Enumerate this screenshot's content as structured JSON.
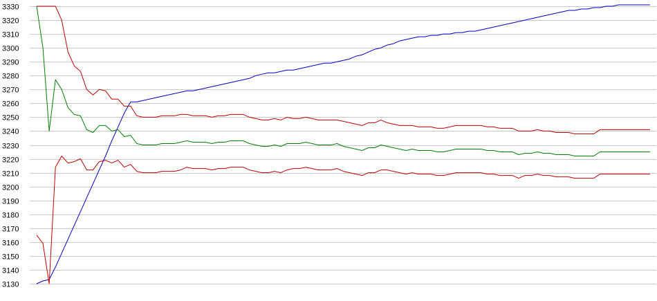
{
  "chart_data": {
    "type": "line",
    "title": "",
    "xlabel": "",
    "ylabel": "",
    "ylim": [
      3130,
      3330
    ],
    "yticks": [
      3130,
      3140,
      3150,
      3160,
      3170,
      3180,
      3190,
      3200,
      3210,
      3220,
      3230,
      3240,
      3250,
      3260,
      3270,
      3280,
      3290,
      3300,
      3310,
      3320,
      3330
    ],
    "grid": true,
    "x": [
      0,
      1,
      2,
      3,
      4,
      5,
      6,
      7,
      8,
      9,
      10,
      11,
      12,
      13,
      14,
      15,
      16,
      17,
      18,
      19,
      20,
      21,
      22,
      23,
      24,
      25,
      26,
      27,
      28,
      29,
      30,
      31,
      32,
      33,
      34,
      35,
      36,
      37,
      38,
      39,
      40,
      41,
      42,
      43,
      44,
      45,
      46,
      47,
      48,
      49,
      50,
      51,
      52,
      53,
      54,
      55,
      56,
      57,
      58,
      59,
      60,
      61,
      62,
      63,
      64,
      65,
      66,
      67,
      68,
      69,
      70,
      71,
      72,
      73,
      74,
      75,
      76,
      77,
      78,
      79,
      80,
      81,
      82,
      83,
      84,
      85,
      86,
      87,
      88,
      89,
      90,
      91,
      92,
      93,
      94,
      95,
      96,
      97,
      98
    ],
    "series": [
      {
        "color": "#0000c0",
        "values": [
          3130,
          3132,
          3133,
          3142,
          3152,
          3162,
          3172,
          3182,
          3192,
          3202,
          3212,
          3222,
          3233,
          3243,
          3253,
          3261,
          3261,
          3262,
          3263,
          3264,
          3265,
          3266,
          3267,
          3268,
          3269,
          3269,
          3270,
          3271,
          3272,
          3273,
          3274,
          3275,
          3276,
          3277,
          3278,
          3280,
          3281,
          3282,
          3282,
          3283,
          3284,
          3284,
          3285,
          3286,
          3287,
          3288,
          3289,
          3289,
          3290,
          3291,
          3292,
          3294,
          3295,
          3297,
          3299,
          3300,
          3302,
          3303,
          3305,
          3306,
          3307,
          3308,
          3308,
          3309,
          3309,
          3310,
          3310,
          3311,
          3311,
          3312,
          3312,
          3313,
          3314,
          3315,
          3316,
          3317,
          3318,
          3319,
          3320,
          3321,
          3322,
          3323,
          3324,
          3325,
          3326,
          3327,
          3327,
          3328,
          3328,
          3329,
          3329,
          3330,
          3330,
          3331,
          3331,
          3331,
          3331,
          3331,
          3331
        ]
      },
      {
        "color": "#c00000",
        "values": [
          3330,
          3330,
          3330,
          3330,
          3320,
          3297,
          3287,
          3283,
          3270,
          3266,
          3270,
          3269,
          3263,
          3263,
          3258,
          3258,
          3251,
          3250,
          3250,
          3250,
          3251,
          3251,
          3251,
          3252,
          3252,
          3251,
          3251,
          3251,
          3250,
          3251,
          3251,
          3252,
          3252,
          3252,
          3250,
          3249,
          3248,
          3248,
          3249,
          3248,
          3250,
          3249,
          3249,
          3250,
          3249,
          3248,
          3248,
          3248,
          3248,
          3247,
          3246,
          3245,
          3244,
          3246,
          3246,
          3248,
          3246,
          3245,
          3244,
          3244,
          3244,
          3243,
          3243,
          3243,
          3242,
          3242,
          3243,
          3244,
          3244,
          3244,
          3244,
          3244,
          3243,
          3243,
          3242,
          3242,
          3242,
          3240,
          3240,
          3240,
          3241,
          3240,
          3240,
          3239,
          3239,
          3239,
          3238,
          3238,
          3238,
          3238,
          3241,
          3241,
          3241,
          3241,
          3241,
          3241,
          3241,
          3241,
          3241
        ]
      },
      {
        "color": "#008000",
        "values": [
          3330,
          3300,
          3240,
          3277,
          3270,
          3257,
          3252,
          3251,
          3241,
          3239,
          3244,
          3244,
          3240,
          3241,
          3236,
          3237,
          3231,
          3230,
          3230,
          3230,
          3231,
          3231,
          3231,
          3232,
          3233,
          3232,
          3232,
          3232,
          3231,
          3232,
          3232,
          3233,
          3233,
          3233,
          3231,
          3230,
          3229,
          3229,
          3230,
          3229,
          3231,
          3231,
          3231,
          3232,
          3231,
          3230,
          3230,
          3230,
          3231,
          3229,
          3228,
          3227,
          3226,
          3228,
          3228,
          3230,
          3229,
          3228,
          3227,
          3226,
          3227,
          3226,
          3226,
          3226,
          3225,
          3225,
          3226,
          3227,
          3227,
          3227,
          3227,
          3227,
          3226,
          3226,
          3225,
          3225,
          3225,
          3223,
          3224,
          3224,
          3225,
          3224,
          3224,
          3223,
          3223,
          3223,
          3222,
          3222,
          3222,
          3222,
          3225,
          3225,
          3225,
          3225,
          3225,
          3225,
          3225,
          3225,
          3225
        ]
      },
      {
        "color": "#c00000",
        "values": [
          3165,
          3159,
          3130,
          3214,
          3222,
          3217,
          3218,
          3220,
          3212,
          3212,
          3218,
          3219,
          3217,
          3219,
          3214,
          3216,
          3211,
          3210,
          3210,
          3210,
          3211,
          3211,
          3211,
          3212,
          3214,
          3213,
          3213,
          3213,
          3212,
          3213,
          3213,
          3214,
          3214,
          3214,
          3212,
          3211,
          3210,
          3210,
          3211,
          3210,
          3212,
          3213,
          3213,
          3214,
          3213,
          3212,
          3212,
          3212,
          3213,
          3211,
          3210,
          3209,
          3208,
          3210,
          3210,
          3212,
          3212,
          3211,
          3210,
          3209,
          3210,
          3209,
          3209,
          3209,
          3208,
          3208,
          3209,
          3210,
          3210,
          3210,
          3210,
          3210,
          3209,
          3209,
          3208,
          3208,
          3208,
          3206,
          3208,
          3208,
          3209,
          3208,
          3208,
          3207,
          3207,
          3207,
          3206,
          3206,
          3206,
          3206,
          3209,
          3209,
          3209,
          3209,
          3209,
          3209,
          3209,
          3209,
          3209
        ]
      }
    ]
  }
}
